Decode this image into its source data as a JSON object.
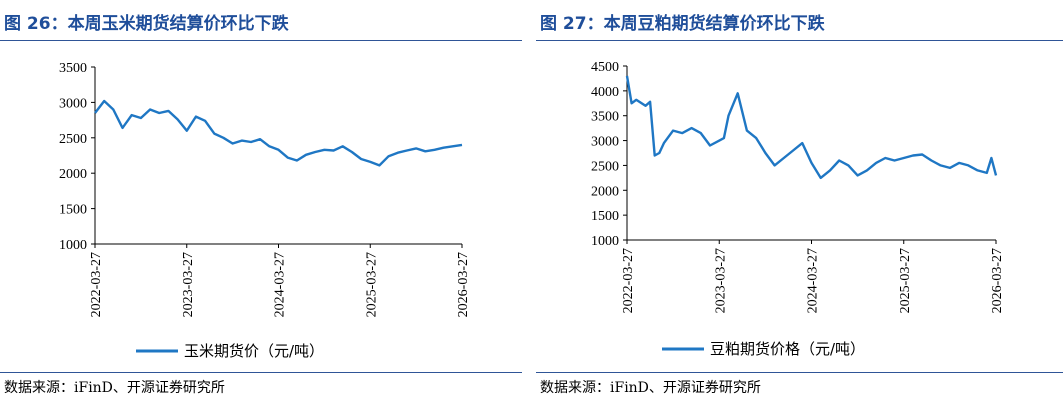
{
  "chart_data": [
    {
      "type": "line",
      "title": "图 26：本周玉米期货结算价环比下跌",
      "source": "数据来源：iFinD、开源证券研究所",
      "legend": "玉米期货价（元/吨）",
      "legend_position": "bottom",
      "color": "#1f77c4",
      "ylim": [
        1000,
        3500
      ],
      "yticks": [
        "1000",
        "1500",
        "2000",
        "2500",
        "3000",
        "3500"
      ],
      "xticks": [
        "2022-03-27",
        "2023-03-27",
        "2024-03-27",
        "2025-03-27",
        "2026-03-27"
      ],
      "x": [
        0,
        0.1,
        0.2,
        0.3,
        0.4,
        0.5,
        0.6,
        0.7,
        0.8,
        0.9,
        1.0,
        1.1,
        1.2,
        1.3,
        1.4,
        1.5,
        1.6,
        1.7,
        1.8,
        1.9,
        2.0,
        2.1,
        2.2,
        2.3,
        2.4,
        2.5,
        2.6,
        2.7,
        2.8,
        2.9,
        3.0,
        3.1,
        3.2,
        3.3,
        3.4,
        3.5,
        3.6,
        3.7,
        3.8,
        3.9,
        4.0
      ],
      "values": [
        2850,
        3020,
        2900,
        2640,
        2820,
        2780,
        2900,
        2850,
        2880,
        2760,
        2600,
        2800,
        2740,
        2560,
        2500,
        2420,
        2460,
        2440,
        2480,
        2380,
        2330,
        2220,
        2180,
        2260,
        2300,
        2330,
        2320,
        2380,
        2300,
        2200,
        2160,
        2110,
        2240,
        2290,
        2320,
        2350,
        2310,
        2330,
        2360,
        2380,
        2400
      ],
      "xlabel": "",
      "ylabel": ""
    },
    {
      "type": "line",
      "title": "图 27：本周豆粕期货结算价环比下跌",
      "source": "数据来源：iFinD、开源证券研究所",
      "legend": "豆粕期货价格（元/吨）",
      "legend_position": "bottom",
      "color": "#1f77c4",
      "ylim": [
        1000,
        4500
      ],
      "yticks": [
        "1000",
        "1500",
        "2000",
        "2500",
        "3000",
        "3500",
        "4000",
        "4500"
      ],
      "xticks": [
        "2022-03-27",
        "2023-03-27",
        "2024-03-27",
        "2025-03-27",
        "2026-03-27"
      ],
      "x": [
        0,
        0.05,
        0.1,
        0.2,
        0.25,
        0.3,
        0.35,
        0.4,
        0.5,
        0.6,
        0.7,
        0.8,
        0.9,
        1.0,
        1.05,
        1.1,
        1.2,
        1.3,
        1.4,
        1.45,
        1.5,
        1.6,
        1.7,
        1.8,
        1.9,
        2.0,
        2.1,
        2.2,
        2.3,
        2.4,
        2.5,
        2.6,
        2.7,
        2.8,
        2.9,
        3.0,
        3.1,
        3.2,
        3.3,
        3.4,
        3.5,
        3.6,
        3.7,
        3.8,
        3.9,
        3.95,
        4.0
      ],
      "values": [
        4300,
        3750,
        3820,
        3700,
        3780,
        2700,
        2750,
        2950,
        3200,
        3150,
        3250,
        3150,
        2900,
        3000,
        3050,
        3500,
        3950,
        3200,
        3050,
        2900,
        2750,
        2500,
        2650,
        2800,
        2950,
        2550,
        2250,
        2400,
        2600,
        2500,
        2300,
        2400,
        2550,
        2650,
        2600,
        2650,
        2700,
        2720,
        2600,
        2500,
        2450,
        2550,
        2500,
        2400,
        2350,
        2650,
        2300
      ],
      "xlabel": "",
      "ylabel": ""
    }
  ]
}
